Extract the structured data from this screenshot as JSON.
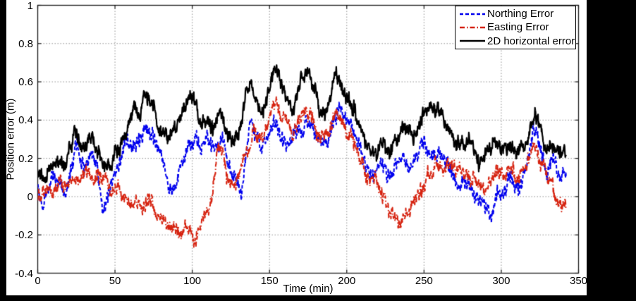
{
  "figure": {
    "background_color": "#000000",
    "plot_background_color": "#ffffff",
    "grid_color": "#8f8f8f",
    "axis_color": "#1a1a1a"
  },
  "chart_data": {
    "type": "line",
    "title": "",
    "xlabel": "Time (min)",
    "ylabel": "Position error (m)",
    "xlim": [
      0,
      350
    ],
    "ylim": [
      -0.4,
      1
    ],
    "grid": true,
    "grid_style": "dotted",
    "legend_position": "top-right",
    "x_ticks": [
      0,
      50,
      100,
      150,
      200,
      250,
      300,
      350
    ],
    "x_tick_labels": [
      "0",
      "50",
      "100",
      "150",
      "200",
      "250",
      "300",
      "350"
    ],
    "y_ticks": [
      1,
      0.8,
      0.6,
      0.4,
      0.2,
      0,
      -0.2,
      -0.4
    ],
    "y_tick_labels": [
      "1",
      "0.8",
      "0.6",
      "0.4",
      "0.2",
      "0",
      "-0.2",
      "-0.4"
    ],
    "t_start": 0,
    "t_end": 342,
    "keyframe_step_min": 3,
    "noise": {
      "wander_amp": 0.028,
      "wander_freq": 0.4,
      "fast_amp": 0.03,
      "fast_freq": 2.2,
      "jitter_amp": 0.02,
      "sample_step_min": 0.2
    },
    "series": [
      {
        "name": "Northing Error",
        "color": "#0000ee",
        "line_style": "dashed",
        "dash": [
          5,
          3
        ],
        "line_width": 2,
        "seed": 13,
        "values": [
          0.02,
          -0.06,
          0.02,
          0.09,
          0.07,
          0.04,
          -0.03,
          0.12,
          0.26,
          0.22,
          0.12,
          0.2,
          0.22,
          0.12,
          -0.06,
          0.0,
          0.06,
          0.12,
          0.2,
          0.28,
          0.24,
          0.29,
          0.3,
          0.35,
          0.37,
          0.32,
          0.26,
          0.16,
          0.08,
          0.02,
          0.06,
          0.18,
          0.24,
          0.27,
          0.3,
          0.26,
          0.3,
          0.27,
          0.25,
          0.28,
          0.29,
          0.18,
          0.1,
          0.09,
          0.02,
          0.25,
          0.44,
          0.33,
          0.26,
          0.29,
          0.34,
          0.42,
          0.36,
          0.3,
          0.26,
          0.29,
          0.34,
          0.33,
          0.4,
          0.38,
          0.31,
          0.27,
          0.26,
          0.31,
          0.42,
          0.46,
          0.41,
          0.4,
          0.33,
          0.27,
          0.21,
          0.15,
          0.1,
          0.12,
          0.18,
          0.14,
          0.1,
          0.16,
          0.22,
          0.18,
          0.13,
          0.16,
          0.22,
          0.27,
          0.26,
          0.22,
          0.2,
          0.24,
          0.21,
          0.15,
          0.08,
          0.05,
          0.08,
          0.09,
          0.02,
          -0.04,
          0.0,
          -0.05,
          -0.08,
          0.0,
          0.03,
          0.06,
          0.1,
          0.04,
          0.06,
          0.12,
          0.22,
          0.34,
          0.28,
          0.18,
          0.14,
          0.18,
          0.14,
          0.11,
          0.1
        ]
      },
      {
        "name": "Easting Error",
        "color": "#d62310",
        "line_style": "dash-dot",
        "dash": [
          7,
          3,
          1.5,
          3
        ],
        "line_width": 2,
        "seed": 47,
        "values": [
          0.02,
          0.03,
          0.05,
          0.01,
          0.04,
          0.08,
          0.04,
          0.1,
          0.11,
          0.06,
          0.1,
          0.14,
          0.1,
          0.12,
          0.09,
          0.06,
          0.03,
          0.04,
          0.01,
          -0.02,
          -0.05,
          -0.02,
          -0.06,
          -0.07,
          -0.03,
          -0.06,
          -0.1,
          -0.12,
          -0.14,
          -0.17,
          -0.2,
          -0.23,
          -0.16,
          -0.2,
          -0.25,
          -0.14,
          -0.07,
          -0.03,
          0.06,
          0.28,
          0.22,
          0.08,
          0.06,
          0.12,
          0.18,
          0.24,
          0.29,
          0.33,
          0.29,
          0.33,
          0.43,
          0.49,
          0.44,
          0.43,
          0.36,
          0.3,
          0.36,
          0.44,
          0.45,
          0.42,
          0.35,
          0.3,
          0.31,
          0.36,
          0.44,
          0.45,
          0.39,
          0.33,
          0.27,
          0.22,
          0.16,
          0.12,
          0.1,
          0.09,
          0.04,
          -0.03,
          -0.08,
          -0.11,
          -0.13,
          -0.09,
          -0.06,
          -0.02,
          0.02,
          0.05,
          0.09,
          0.13,
          0.16,
          0.13,
          0.16,
          0.16,
          0.11,
          0.13,
          0.1,
          0.12,
          0.1,
          0.07,
          0.03,
          0.07,
          0.11,
          0.16,
          0.14,
          0.11,
          0.14,
          0.11,
          0.1,
          0.16,
          0.23,
          0.27,
          0.22,
          0.16,
          0.11,
          0.05,
          0.0,
          -0.06,
          -0.07
        ]
      },
      {
        "name": "2D horizontal error",
        "color": "#000000",
        "line_style": "solid",
        "dash": [],
        "line_width": 2.2,
        "seed": 88,
        "values": [
          0.1,
          0.1,
          0.12,
          0.16,
          0.19,
          0.2,
          0.16,
          0.26,
          0.35,
          0.28,
          0.21,
          0.3,
          0.3,
          0.24,
          0.17,
          0.15,
          0.18,
          0.22,
          0.27,
          0.33,
          0.43,
          0.48,
          0.4,
          0.5,
          0.52,
          0.46,
          0.36,
          0.33,
          0.29,
          0.33,
          0.38,
          0.44,
          0.47,
          0.52,
          0.5,
          0.4,
          0.39,
          0.34,
          0.35,
          0.44,
          0.4,
          0.3,
          0.31,
          0.34,
          0.42,
          0.57,
          0.58,
          0.5,
          0.44,
          0.47,
          0.58,
          0.65,
          0.62,
          0.55,
          0.49,
          0.44,
          0.53,
          0.62,
          0.63,
          0.6,
          0.53,
          0.44,
          0.44,
          0.5,
          0.62,
          0.64,
          0.56,
          0.54,
          0.47,
          0.41,
          0.34,
          0.28,
          0.25,
          0.24,
          0.28,
          0.26,
          0.24,
          0.3,
          0.33,
          0.39,
          0.32,
          0.3,
          0.34,
          0.43,
          0.47,
          0.45,
          0.48,
          0.44,
          0.36,
          0.33,
          0.28,
          0.27,
          0.29,
          0.3,
          0.24,
          0.2,
          0.19,
          0.23,
          0.26,
          0.28,
          0.26,
          0.25,
          0.29,
          0.25,
          0.23,
          0.27,
          0.34,
          0.43,
          0.4,
          0.29,
          0.24,
          0.29,
          0.26,
          0.21,
          0.22
        ]
      }
    ]
  }
}
